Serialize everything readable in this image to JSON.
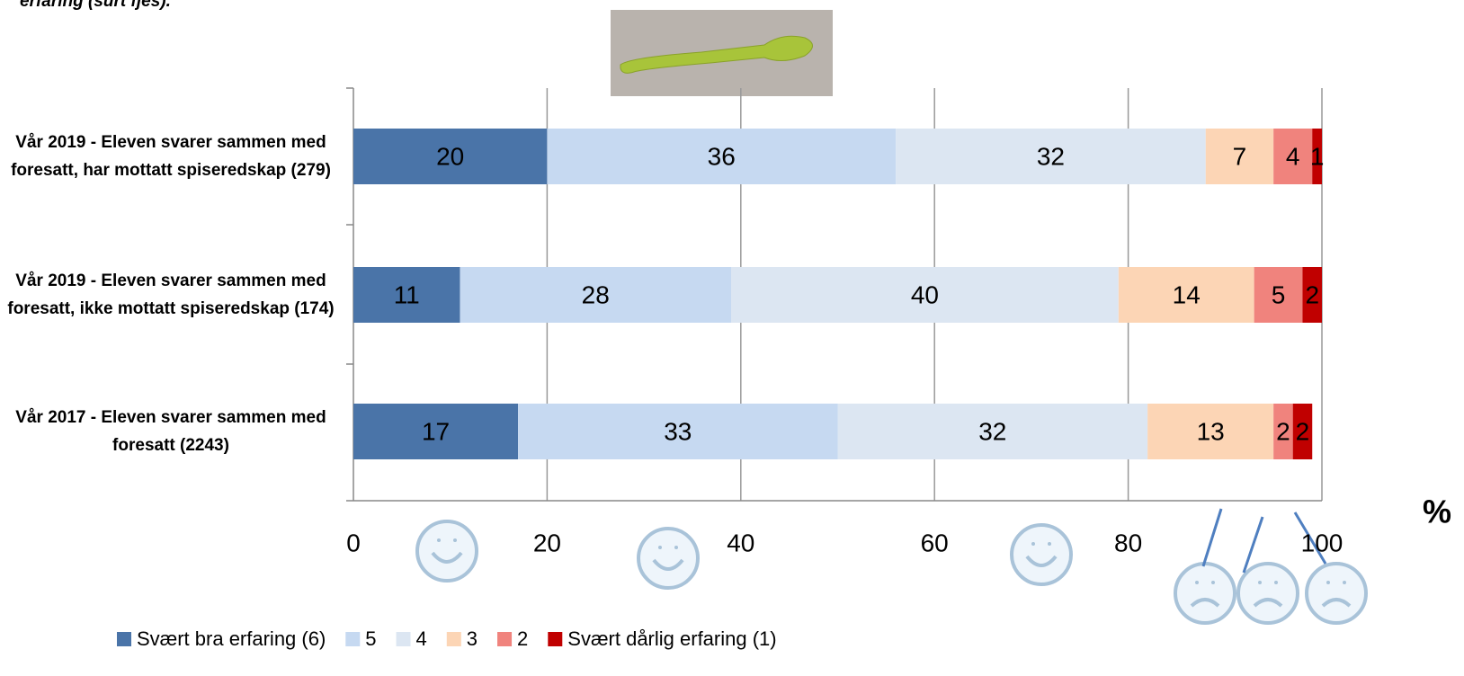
{
  "chart_data": {
    "type": "bar",
    "orientation": "horizontal",
    "stacked": true,
    "subtitle": "erfaring (surt fjes).",
    "categories": [
      "Vår 2019 - Eleven svarer sammen med foresatt, har mottatt spiseredskap (279)",
      "Vår 2019 - Eleven svarer sammen med foresatt, ikke mottatt spiseredskap (174)",
      "Vår 2017 - Eleven svarer sammen med foresatt (2243)"
    ],
    "series": [
      {
        "name": "Svært bra erfaring (6)",
        "color": "#4a74a8",
        "values": [
          20,
          11,
          17
        ]
      },
      {
        "name": "5",
        "color": "#c6d9f1",
        "values": [
          36,
          28,
          33
        ]
      },
      {
        "name": "4",
        "color": "#dce6f2",
        "values": [
          32,
          40,
          32
        ]
      },
      {
        "name": "3",
        "color": "#fcd5b5",
        "values": [
          7,
          14,
          13
        ]
      },
      {
        "name": "2",
        "color": "#f0837d",
        "values": [
          4,
          5,
          2
        ]
      },
      {
        "name": "Svært dårlig erfaring (1)",
        "color": "#c00000",
        "values": [
          1,
          2,
          2
        ]
      }
    ],
    "xlim": [
      0,
      100
    ],
    "xticks": [
      0,
      20,
      40,
      60,
      80,
      100
    ],
    "x_label": "%",
    "grid": true,
    "legend": "bottom"
  }
}
